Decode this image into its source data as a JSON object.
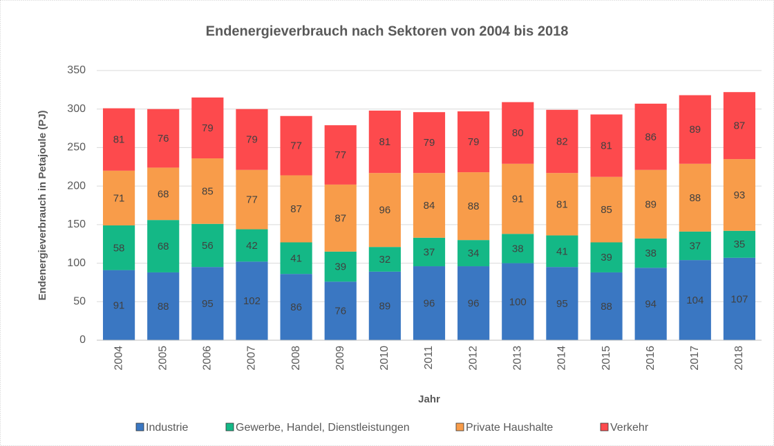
{
  "chart_data": {
    "type": "stacked_bar",
    "title": "Endenergieverbrauch nach Sektoren von 2004 bis 2018",
    "x_label": "Jahr",
    "y_label": "Endenergieverbrauch in Petajoule (PJ)",
    "categories": [
      "2004",
      "2005",
      "2006",
      "2007",
      "2008",
      "2009",
      "2010",
      "2011",
      "2012",
      "2013",
      "2014",
      "2015",
      "2016",
      "2017",
      "2018"
    ],
    "series": [
      {
        "name": "Industrie",
        "color": "#3a77c2",
        "values": [
          91,
          88,
          95,
          102,
          86,
          76,
          89,
          96,
          96,
          100,
          95,
          88,
          94,
          104,
          107
        ]
      },
      {
        "name": "Gewerbe, Handel, Dienstleistungen",
        "color": "#14b886",
        "values": [
          58,
          68,
          56,
          42,
          41,
          39,
          32,
          37,
          34,
          38,
          41,
          39,
          38,
          37,
          35
        ]
      },
      {
        "name": "Private Haushalte",
        "color": "#f89c4a",
        "values": [
          71,
          68,
          85,
          77,
          87,
          87,
          96,
          84,
          88,
          91,
          81,
          85,
          89,
          88,
          93
        ]
      },
      {
        "name": "Verkehr",
        "color": "#fd4a4d",
        "values": [
          81,
          76,
          79,
          79,
          77,
          77,
          81,
          79,
          79,
          80,
          82,
          81,
          86,
          89,
          87
        ]
      }
    ],
    "ylim": [
      0,
      350
    ],
    "yticks": [
      0,
      50,
      100,
      150,
      200,
      250,
      300,
      350
    ],
    "grid": true,
    "legend": "bottom"
  }
}
